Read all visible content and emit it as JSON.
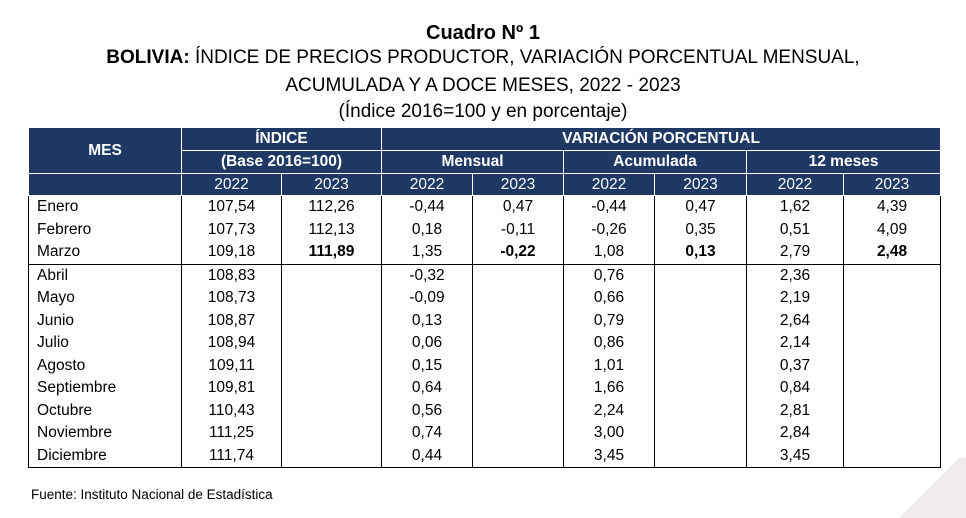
{
  "title_line1": "Cuadro Nº 1",
  "title_line2_bold": "BOLIVIA:",
  "title_line2_rest": " ÍNDICE DE PRECIOS PRODUCTOR, VARIACIÓN PORCENTUAL MENSUAL,",
  "title_line3": "ACUMULADA Y A DOCE MESES, 2022 - 2023",
  "title_line4": "(Índice 2016=100 y en porcentaje)",
  "headers": {
    "mes": "MES",
    "indice": "ÍNDICE",
    "indice_base": "(Base 2016=100)",
    "variacion": "VARIACIÓN PORCENTUAL",
    "mensual": "Mensual",
    "acumulada": "Acumulada",
    "doce_meses": "12 meses",
    "years": [
      "2022",
      "2023",
      "2022",
      "2023",
      "2022",
      "2023",
      "2022",
      "2023"
    ]
  },
  "rows": [
    {
      "mes": "Enero",
      "i22": "107,54",
      "i23": "112,26",
      "m22": "-0,44",
      "m23": "0,47",
      "a22": "-0,44",
      "a23": "0,47",
      "d22": "1,62",
      "d23": "4,39"
    },
    {
      "mes": "Febrero",
      "i22": "107,73",
      "i23": "112,13",
      "m22": "0,18",
      "m23": "-0,11",
      "a22": "-0,26",
      "a23": "0,35",
      "d22": "0,51",
      "d23": "4,09"
    },
    {
      "mes": "Marzo",
      "i22": "109,18",
      "i23": "111,89",
      "m22": "1,35",
      "m23": "-0,22",
      "a22": "1,08",
      "a23": "0,13",
      "d22": "2,79",
      "d23": "2,48"
    },
    {
      "mes": "Abril",
      "i22": "108,83",
      "i23": "",
      "m22": "-0,32",
      "m23": "",
      "a22": "0,76",
      "a23": "",
      "d22": "2,36",
      "d23": ""
    },
    {
      "mes": "Mayo",
      "i22": "108,73",
      "i23": "",
      "m22": "-0,09",
      "m23": "",
      "a22": "0,66",
      "a23": "",
      "d22": "2,19",
      "d23": ""
    },
    {
      "mes": "Junio",
      "i22": "108,87",
      "i23": "",
      "m22": "0,13",
      "m23": "",
      "a22": "0,79",
      "a23": "",
      "d22": "2,64",
      "d23": ""
    },
    {
      "mes": "Julio",
      "i22": "108,94",
      "i23": "",
      "m22": "0,06",
      "m23": "",
      "a22": "0,86",
      "a23": "",
      "d22": "2,14",
      "d23": ""
    },
    {
      "mes": "Agosto",
      "i22": "109,11",
      "i23": "",
      "m22": "0,15",
      "m23": "",
      "a22": "1,01",
      "a23": "",
      "d22": "0,37",
      "d23": ""
    },
    {
      "mes": "Septiembre",
      "i22": "109,81",
      "i23": "",
      "m22": "0,64",
      "m23": "",
      "a22": "1,66",
      "a23": "",
      "d22": "0,84",
      "d23": ""
    },
    {
      "mes": "Octubre",
      "i22": "110,43",
      "i23": "",
      "m22": "0,56",
      "m23": "",
      "a22": "2,24",
      "a23": "",
      "d22": "2,81",
      "d23": ""
    },
    {
      "mes": "Noviembre",
      "i22": "111,25",
      "i23": "",
      "m22": "0,74",
      "m23": "",
      "a22": "3,00",
      "a23": "",
      "d22": "2,84",
      "d23": ""
    },
    {
      "mes": "Diciembre",
      "i22": "111,74",
      "i23": "",
      "m22": "0,44",
      "m23": "",
      "a22": "3,45",
      "a23": "",
      "d22": "3,45",
      "d23": ""
    }
  ],
  "fuente": "Fuente: Instituto Nacional de Estadística",
  "colors": {
    "header_bg": "#1f3864",
    "header_text": "#ffffff"
  }
}
